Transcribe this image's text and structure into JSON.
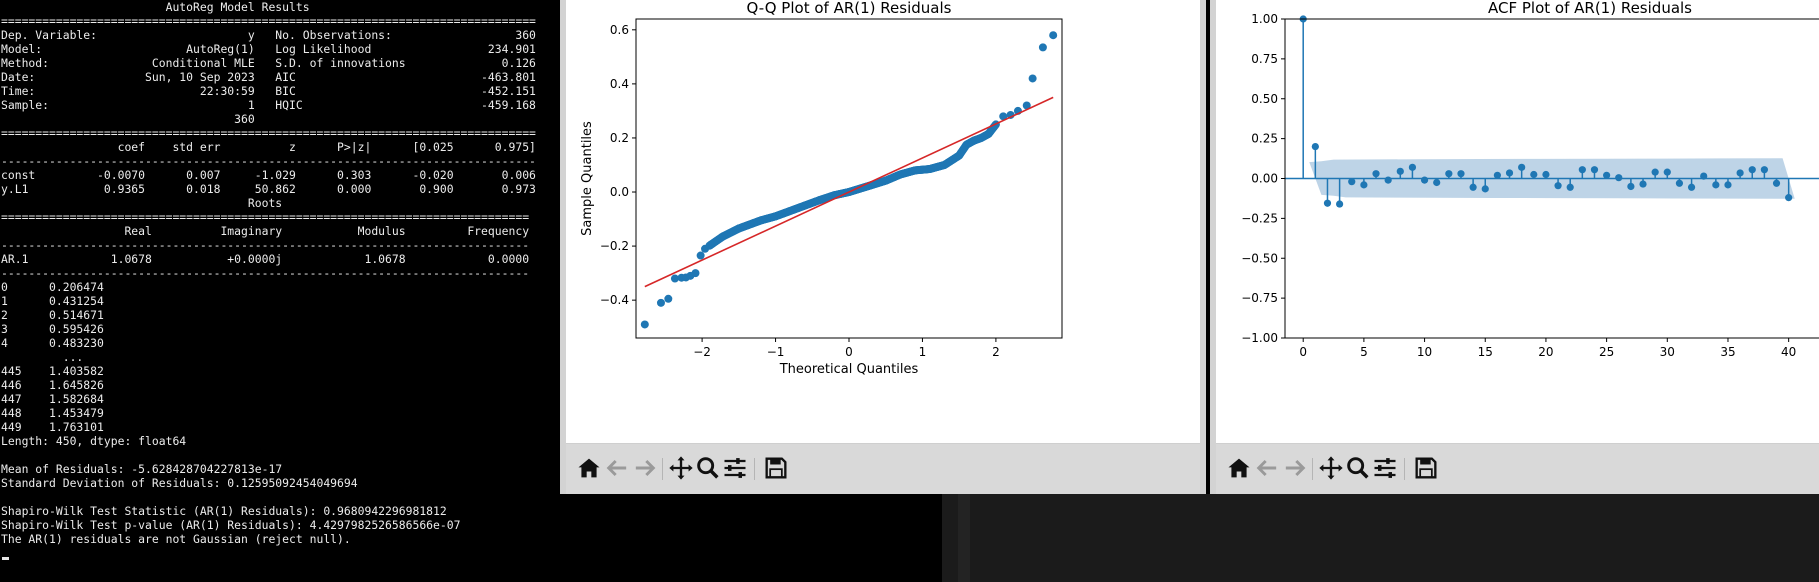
{
  "terminal": {
    "output": "                        AutoReg Model Results\n==============================================================================\nDep. Variable:                      y   No. Observations:                  360\nModel:                     AutoReg(1)   Log Likelihood                 234.901\nMethod:               Conditional MLE   S.D. of innovations              0.126\nDate:                Sun, 10 Sep 2023   AIC                           -463.801\nTime:                        22:30:59   BIC                           -452.151\nSample:                             1   HQIC                          -459.168\n                                  360\n==============================================================================\n                 coef    std err          z      P>|z|      [0.025      0.975]\n------------------------------------------------------------------------------\nconst         -0.0070      0.007     -1.029      0.303      -0.020       0.006\ny.L1           0.9365      0.018     50.862      0.000       0.900       0.973\n                                    Roots\n=============================================================================\n                  Real          Imaginary           Modulus         Frequency\n-----------------------------------------------------------------------------\nAR.1            1.0678           +0.0000j            1.0678            0.0000\n-----------------------------------------------------------------------------\n0      0.206474\n1      0.431254\n2      0.514671\n3      0.595426\n4      0.483230\n         ...\n445    1.403582\n446    1.645826\n447    1.582684\n448    1.453479\n449    1.763101\nLength: 450, dtype: float64\n\nMean of Residuals: -5.628428704227813e-17\nStandard Deviation of Residuals: 0.12595092454049694\n\nShapiro-Wilk Test Statistic (AR(1) Residuals): 0.9680942296981812\nShapiro-Wilk Test p-value (AR(1) Residuals): 4.4297982526586566e-07\nThe AR(1) residuals are not Gaussian (reject null)."
  },
  "toolbar_icons": [
    "home-icon",
    "back-arrow-icon",
    "forward-arrow-icon",
    "pan-move-icon",
    "zoom-magnifier-icon",
    "configure-subplots-icon",
    "save-floppy-icon"
  ],
  "colors": {
    "marker": "#1f77b4",
    "fit_line": "#d62728",
    "band": "#b3cde3",
    "toolbar": "#d9d9d9"
  },
  "chart_data": [
    {
      "type": "scatter",
      "title": "Q-Q Plot of AR(1) Residuals",
      "xlabel": "Theoretical Quantiles",
      "ylabel": "Sample Quantiles",
      "xlim": [
        -2.9,
        2.9
      ],
      "ylim": [
        -0.54,
        0.64
      ],
      "xticks": [
        -2,
        -1,
        0,
        1,
        2
      ],
      "yticks": [
        -0.4,
        -0.2,
        0.0,
        0.2,
        0.4,
        0.6
      ],
      "xtick_labels": [
        "−2",
        "−1",
        "0",
        "1",
        "2"
      ],
      "ytick_labels": [
        "−0.4",
        "−0.2",
        "0.0",
        "0.2",
        "0.4",
        "0.6"
      ],
      "reference_line": {
        "x": [
          -2.78,
          2.78
        ],
        "y": [
          -0.35,
          0.35
        ]
      },
      "anchor_points": [
        [
          -2.78,
          -0.49
        ],
        [
          -2.56,
          -0.41
        ],
        [
          -2.46,
          -0.395
        ],
        [
          -2.37,
          -0.32
        ],
        [
          -2.28,
          -0.317
        ],
        [
          -2.22,
          -0.316
        ],
        [
          -2.16,
          -0.31
        ],
        [
          -2.09,
          -0.3
        ],
        [
          -2.02,
          -0.235
        ],
        [
          -1.96,
          -0.21
        ],
        [
          -1.88,
          -0.195
        ],
        [
          -1.72,
          -0.165
        ],
        [
          -1.5,
          -0.135
        ],
        [
          -1.2,
          -0.105
        ],
        [
          -1.0,
          -0.09
        ],
        [
          -0.7,
          -0.06
        ],
        [
          -0.4,
          -0.03
        ],
        [
          -0.2,
          -0.012
        ],
        [
          0.0,
          0.0
        ],
        [
          0.3,
          0.025
        ],
        [
          0.5,
          0.042
        ],
        [
          0.7,
          0.065
        ],
        [
          0.9,
          0.08
        ],
        [
          1.1,
          0.085
        ],
        [
          1.3,
          0.1
        ],
        [
          1.5,
          0.135
        ],
        [
          1.6,
          0.175
        ],
        [
          1.7,
          0.19
        ],
        [
          1.8,
          0.2
        ],
        [
          1.9,
          0.215
        ],
        [
          2.0,
          0.25
        ],
        [
          2.1,
          0.28
        ],
        [
          2.2,
          0.285
        ],
        [
          2.3,
          0.3
        ],
        [
          2.42,
          0.32
        ],
        [
          2.5,
          0.42
        ],
        [
          2.64,
          0.535
        ],
        [
          2.78,
          0.58
        ]
      ],
      "n_points": 450
    },
    {
      "type": "bar",
      "title": "ACF Plot of AR(1) Residuals",
      "xlim": [
        -1.5,
        42.5
      ],
      "ylim": [
        -1.0,
        1.0
      ],
      "xticks": [
        0,
        5,
        10,
        15,
        20,
        25,
        30,
        35,
        40
      ],
      "yticks": [
        -1.0,
        -0.75,
        -0.5,
        -0.25,
        0.0,
        0.25,
        0.5,
        0.75,
        1.0
      ],
      "xtick_labels": [
        "0",
        "5",
        "10",
        "15",
        "20",
        "25",
        "30",
        "35",
        "40"
      ],
      "ytick_labels": [
        "−1.00",
        "−0.75",
        "−0.50",
        "−0.25",
        "0.00",
        "0.25",
        "0.50",
        "0.75",
        "1.00"
      ],
      "lags": [
        0,
        1,
        2,
        3,
        4,
        5,
        6,
        7,
        8,
        9,
        10,
        11,
        12,
        13,
        14,
        15,
        16,
        17,
        18,
        19,
        20,
        21,
        22,
        23,
        24,
        25,
        26,
        27,
        28,
        29,
        30,
        31,
        32,
        33,
        34,
        35,
        36,
        37,
        38,
        39,
        40
      ],
      "values": [
        1.0,
        0.2,
        -0.155,
        -0.16,
        -0.02,
        -0.04,
        0.03,
        -0.01,
        0.045,
        0.07,
        -0.01,
        -0.025,
        0.03,
        0.03,
        -0.055,
        -0.065,
        0.02,
        0.035,
        0.07,
        0.025,
        0.025,
        -0.045,
        -0.055,
        0.055,
        0.055,
        0.02,
        0.005,
        -0.05,
        -0.035,
        0.04,
        0.04,
        -0.03,
        -0.055,
        0.015,
        -0.04,
        -0.04,
        0.035,
        0.055,
        0.055,
        -0.03,
        -0.12
      ],
      "confidence_band": {
        "lags": [
          1,
          2,
          3,
          5,
          10,
          15,
          20,
          25,
          30,
          35,
          40
        ],
        "upper": [
          0.103,
          0.108,
          0.118,
          0.119,
          0.121,
          0.122,
          0.123,
          0.124,
          0.125,
          0.126,
          0.127
        ],
        "lower": [
          -0.103,
          -0.108,
          -0.118,
          -0.119,
          -0.121,
          -0.122,
          -0.123,
          -0.124,
          -0.125,
          -0.126,
          -0.127
        ]
      }
    }
  ]
}
